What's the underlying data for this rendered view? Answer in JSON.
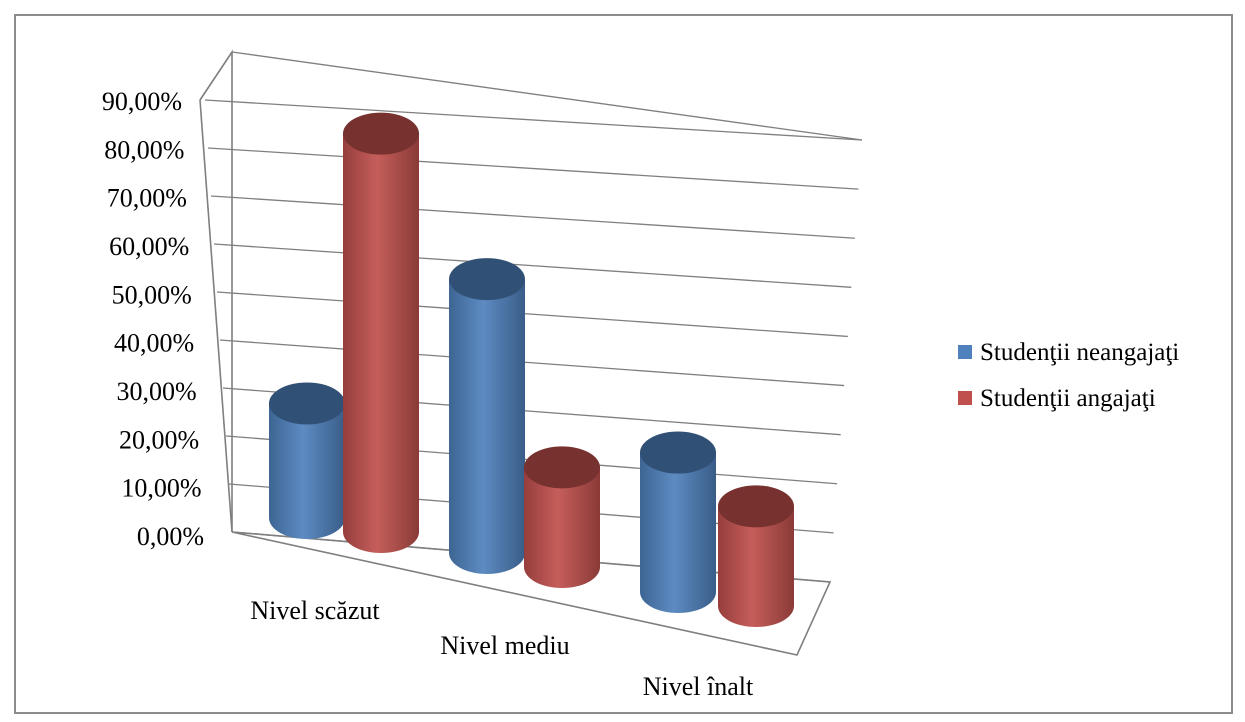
{
  "chart_data": {
    "type": "bar",
    "style": "3d-cylinder",
    "categories": [
      "Nivel scăzut",
      "Nivel mediu",
      "Nivel înalt"
    ],
    "series": [
      {
        "name": "Studenţii neangajaţi",
        "color": "#4f81bd",
        "values": [
          23.0,
          55.0,
          28.0
        ]
      },
      {
        "name": "Studenţii angajaţi",
        "color": "#c0504d",
        "values": [
          80.0,
          20.0,
          20.0
        ]
      }
    ],
    "y_ticks": [
      "0,00%",
      "10,00%",
      "20,00%",
      "30,00%",
      "40,00%",
      "50,00%",
      "60,00%",
      "70,00%",
      "80,00%",
      "90,00%"
    ],
    "ylim": [
      0,
      90
    ],
    "grid": true,
    "legend_position": "right"
  }
}
